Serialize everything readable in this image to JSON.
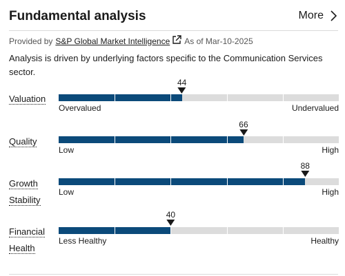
{
  "header": {
    "title": "Fundamental analysis",
    "more_label": "More"
  },
  "provider": {
    "prefix": "Provided by",
    "name": "S&P Global Market Intelligence",
    "as_of": "As of Mar-10-2025"
  },
  "description": "Analysis is driven by underlying factors specific to the Communication Services sector.",
  "metrics": [
    {
      "label": "Valuation",
      "score": "44",
      "value": 44,
      "low": "Overvalued",
      "high": "Undervalued"
    },
    {
      "label": "Quality",
      "score": "66",
      "value": 66,
      "low": "Low",
      "high": "High"
    },
    {
      "label": "Growth Stability",
      "score": "88",
      "value": 88,
      "low": "Low",
      "high": "High"
    },
    {
      "label": "Financial Health",
      "score": "40",
      "value": 40,
      "low": "Less Healthy",
      "high": "Healthy"
    }
  ],
  "colors": {
    "fill": "#0b4a7a",
    "track": "#dcdcdc"
  },
  "icons": {
    "more": "chevron-right-icon",
    "external": "external-link-icon"
  }
}
